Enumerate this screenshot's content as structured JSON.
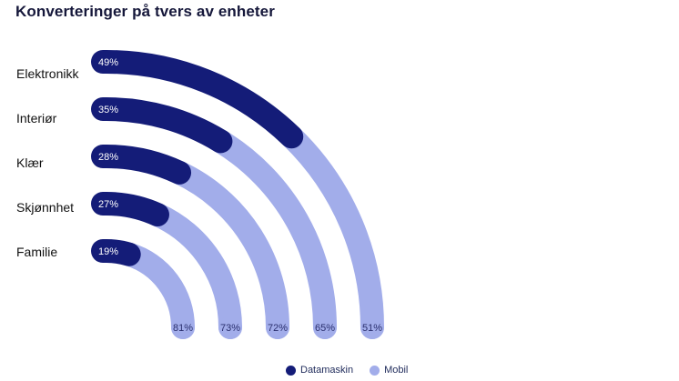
{
  "title": "Konverteringer på tvers av enheter",
  "legend": {
    "desktop": "Datamaskin",
    "mobile": "Mobil"
  },
  "colors": {
    "desktop": "#141c78",
    "mobile": "#a2adea",
    "title": "#15173a"
  },
  "chart_data": {
    "type": "radial-bar",
    "title": "Konverteringer på tvers av enheter",
    "categories": [
      "Elektronikk",
      "Interiør",
      "Klær",
      "Skjønnhet",
      "Familie"
    ],
    "series": [
      {
        "name": "Datamaskin",
        "values": [
          49,
          35,
          28,
          27,
          19
        ],
        "labels": [
          "49%",
          "35%",
          "28%",
          "27%",
          "19%"
        ]
      },
      {
        "name": "Mobil",
        "values": [
          51,
          65,
          72,
          73,
          81
        ],
        "labels": [
          "51%",
          "65%",
          "72%",
          "73%",
          "81%"
        ]
      }
    ],
    "legend_position": "bottom-center",
    "grid": false
  }
}
